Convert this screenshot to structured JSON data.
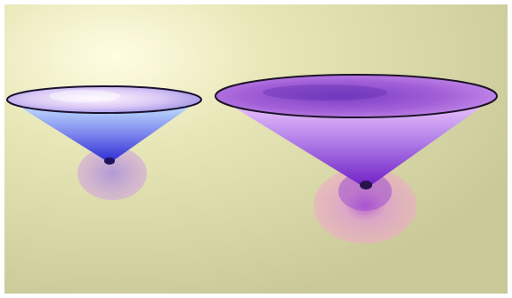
{
  "scene": {
    "background_color": "#e7e6b6",
    "highlight_color": "#fffde2",
    "shadow_color": "#c9c898",
    "objects": [
      {
        "name": "small-cone-dish",
        "rim_top_color": "#d9c8f5",
        "rim_edge_color": "#1b1230",
        "body_top_color": "#cdefff",
        "body_bottom_color": "#2d2bd3",
        "shadow_color": "#d1a2de",
        "hub_color": "#1c1460"
      },
      {
        "name": "large-cone-dish",
        "rim_top_color": "#a25fd7",
        "rim_edge_color": "#1e1328",
        "body_top_color": "#f6d2ff",
        "body_bottom_color": "#6f1ec5",
        "shadow_color": "#f1aac8",
        "hub_color": "#2a124a"
      }
    ]
  }
}
